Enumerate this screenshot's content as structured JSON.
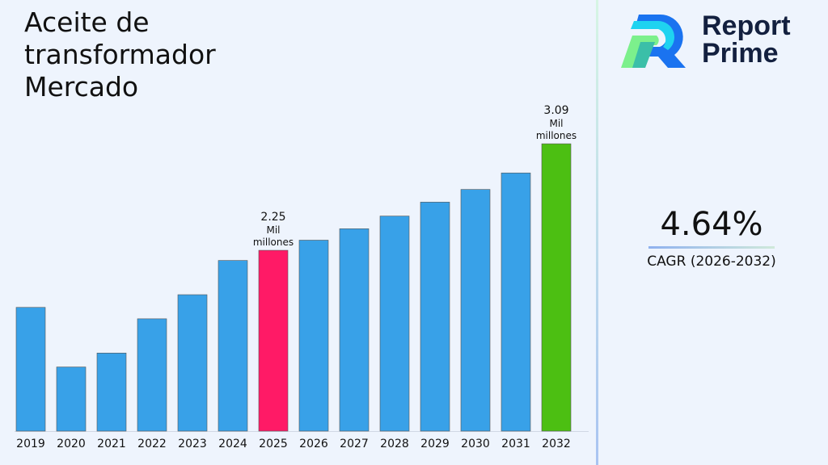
{
  "title": "Aceite de transformador Mercado",
  "brand": {
    "name_line1": "Report",
    "name_line2": "Prime"
  },
  "cagr": {
    "value": "4.64%",
    "label": "CAGR (2026-2032)"
  },
  "colors": {
    "bar": "#38a1e8",
    "highlight_2025": "#ff1a66",
    "highlight_2032": "#4cbf12"
  },
  "chart_data": {
    "type": "bar",
    "title": "Aceite de transformador Mercado",
    "xlabel": "",
    "ylabel": "",
    "categories": [
      "2019",
      "2020",
      "2021",
      "2022",
      "2023",
      "2024",
      "2025",
      "2026",
      "2027",
      "2028",
      "2029",
      "2030",
      "2031",
      "2032"
    ],
    "values": [
      1.8,
      1.33,
      1.44,
      1.71,
      1.9,
      2.17,
      2.25,
      2.33,
      2.42,
      2.52,
      2.63,
      2.73,
      2.86,
      3.09
    ],
    "annotations": [
      {
        "category": "2025",
        "lines": [
          "2.25",
          "Mil",
          "millones"
        ]
      },
      {
        "category": "2032",
        "lines": [
          "3.09",
          "Mil",
          "millones"
        ]
      }
    ],
    "grid": false,
    "legend": "none"
  }
}
